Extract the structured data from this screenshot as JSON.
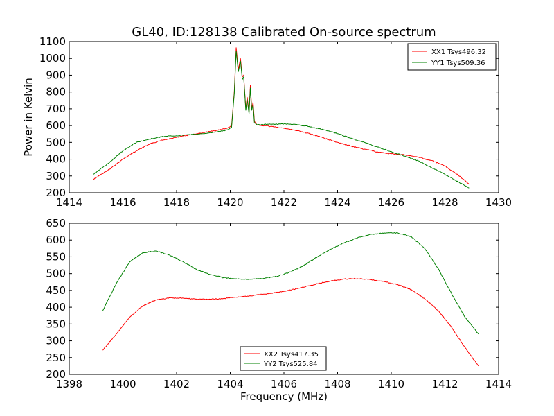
{
  "chart_data": [
    {
      "type": "line",
      "title": "GL40, ID:128138 Calibrated On-source spectrum",
      "ylabel": "Power in Kelvin",
      "xlabel": "",
      "xlim": [
        1414,
        1430
      ],
      "ylim": [
        200,
        1100
      ],
      "xticks": [
        1414,
        1416,
        1418,
        1420,
        1422,
        1424,
        1426,
        1428,
        1430
      ],
      "yticks": [
        200,
        300,
        400,
        500,
        600,
        700,
        800,
        900,
        1000,
        1100
      ],
      "grid": false,
      "legend": "top-right",
      "series": [
        {
          "name": "XX1 Tsys496.32",
          "color": "#ff0000",
          "x": [
            1414.9,
            1415.5,
            1416.0,
            1416.5,
            1417.0,
            1417.5,
            1418.0,
            1418.5,
            1419.0,
            1419.5,
            1419.9,
            1420.05,
            1420.15,
            1420.22,
            1420.3,
            1420.38,
            1420.45,
            1420.5,
            1420.58,
            1420.63,
            1420.7,
            1420.75,
            1420.8,
            1420.85,
            1420.9,
            1421.0,
            1421.5,
            1422.0,
            1422.5,
            1423.0,
            1423.5,
            1424.0,
            1424.5,
            1425.0,
            1425.5,
            1426.0,
            1426.5,
            1427.0,
            1427.5,
            1428.0,
            1428.5,
            1428.9
          ],
          "values": [
            280,
            340,
            400,
            450,
            490,
            515,
            530,
            545,
            558,
            572,
            585,
            600,
            800,
            1065,
            935,
            1000,
            890,
            900,
            700,
            770,
            680,
            840,
            700,
            740,
            625,
            605,
            595,
            585,
            570,
            550,
            525,
            500,
            478,
            460,
            442,
            432,
            425,
            412,
            392,
            360,
            305,
            250
          ]
        },
        {
          "name": "YY1 Tsys509.36",
          "color": "#008000",
          "x": [
            1414.9,
            1415.5,
            1416.0,
            1416.5,
            1417.0,
            1417.5,
            1418.0,
            1418.5,
            1419.0,
            1419.5,
            1419.9,
            1420.05,
            1420.15,
            1420.22,
            1420.3,
            1420.38,
            1420.45,
            1420.5,
            1420.58,
            1420.63,
            1420.7,
            1420.75,
            1420.8,
            1420.85,
            1420.9,
            1421.0,
            1421.5,
            1422.0,
            1422.5,
            1423.0,
            1423.5,
            1424.0,
            1424.5,
            1425.0,
            1425.5,
            1426.0,
            1426.5,
            1427.0,
            1427.5,
            1428.0,
            1428.5,
            1428.9
          ],
          "values": [
            310,
            380,
            450,
            500,
            520,
            535,
            540,
            545,
            552,
            562,
            575,
            590,
            790,
            1045,
            920,
            985,
            875,
            890,
            690,
            755,
            670,
            825,
            690,
            725,
            615,
            605,
            608,
            610,
            605,
            592,
            575,
            552,
            525,
            500,
            472,
            445,
            418,
            390,
            350,
            310,
            265,
            228
          ]
        }
      ]
    },
    {
      "type": "line",
      "title": "",
      "xlabel": "Frequency (MHz)",
      "ylabel": "",
      "xlim": [
        1398,
        1414
      ],
      "ylim": [
        200,
        650
      ],
      "xticks": [
        1398,
        1400,
        1402,
        1404,
        1406,
        1408,
        1410,
        1412,
        1414
      ],
      "yticks": [
        200,
        250,
        300,
        350,
        400,
        450,
        500,
        550,
        600,
        650
      ],
      "grid": false,
      "legend": "bottom-center",
      "series": [
        {
          "name": "XX2 Tsys417.35",
          "color": "#ff0000",
          "x": [
            1399.25,
            1399.75,
            1400.25,
            1400.75,
            1401.25,
            1401.75,
            1402.25,
            1402.75,
            1403.25,
            1403.75,
            1404.25,
            1404.75,
            1405.25,
            1405.75,
            1406.25,
            1406.75,
            1407.25,
            1407.75,
            1408.25,
            1408.75,
            1409.25,
            1409.75,
            1410.25,
            1410.75,
            1411.25,
            1411.75,
            1412.25,
            1412.75,
            1413.25
          ],
          "values": [
            272,
            320,
            370,
            405,
            422,
            428,
            427,
            424,
            424,
            426,
            430,
            434,
            439,
            444,
            451,
            460,
            470,
            478,
            484,
            485,
            482,
            476,
            467,
            452,
            425,
            390,
            340,
            280,
            225
          ]
        },
        {
          "name": "YY2 Tsys525.84",
          "color": "#008000",
          "x": [
            1399.25,
            1399.75,
            1400.25,
            1400.75,
            1401.25,
            1401.75,
            1402.25,
            1402.75,
            1403.25,
            1403.75,
            1404.25,
            1404.75,
            1405.25,
            1405.75,
            1406.25,
            1406.75,
            1407.25,
            1407.75,
            1408.25,
            1408.75,
            1409.25,
            1409.75,
            1410.25,
            1410.75,
            1411.25,
            1411.75,
            1412.25,
            1412.75,
            1413.25
          ],
          "values": [
            390,
            470,
            535,
            563,
            567,
            555,
            535,
            512,
            497,
            488,
            484,
            483,
            486,
            492,
            505,
            525,
            550,
            573,
            592,
            607,
            617,
            621,
            621,
            610,
            575,
            515,
            440,
            370,
            320
          ]
        }
      ]
    }
  ]
}
